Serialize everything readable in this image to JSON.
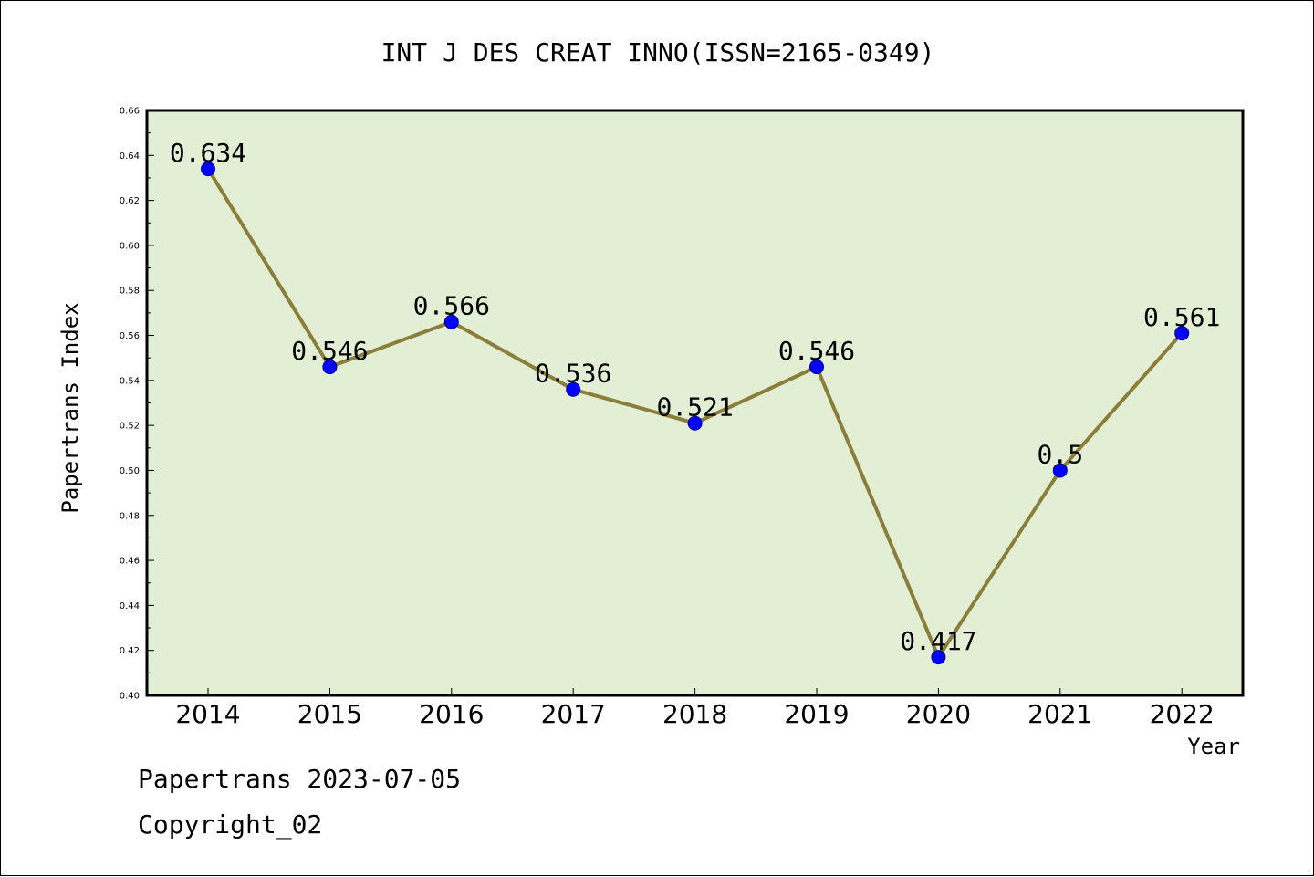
{
  "chart_data": {
    "type": "line",
    "title": "INT J DES CREAT INNO(ISSN=2165-0349)",
    "xlabel": "Year",
    "ylabel": "Papertrans Index",
    "categories": [
      "2014",
      "2015",
      "2016",
      "2017",
      "2018",
      "2019",
      "2020",
      "2021",
      "2022"
    ],
    "series": [
      {
        "values": [
          0.634,
          0.546,
          0.566,
          0.536,
          0.521,
          0.546,
          0.417,
          0.5,
          0.561
        ],
        "data_labels": [
          "0.634",
          "0.546",
          "0.566",
          "0.536",
          "0.521",
          "0.546",
          "0.417",
          "0.5",
          "0.561"
        ]
      }
    ],
    "ylim": [
      0.4,
      0.66
    ],
    "yticks": [
      "0.40",
      "0.42",
      "0.44",
      "0.46",
      "0.48",
      "0.50",
      "0.52",
      "0.54",
      "0.56",
      "0.58",
      "0.60",
      "0.62",
      "0.64",
      "0.66"
    ],
    "grid": false,
    "legend": "none",
    "colors": {
      "plot_background": "#e2efd4",
      "line": "#8b7d3a",
      "marker": "#0000ff",
      "marker_edge": "#00008b",
      "axes": "#000000"
    }
  },
  "footer": {
    "source": "Papertrans 2023-07-05",
    "copyright": "Copyright_02"
  }
}
